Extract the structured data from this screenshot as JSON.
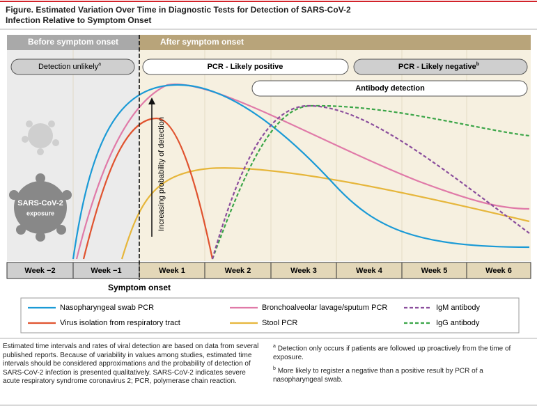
{
  "header": {
    "title": "Figure. Estimated Variation Over Time in Diagnostic Tests for Detection of SARS-CoV-2 Infection Relative to Symptom Onset"
  },
  "phases": {
    "before": "Before symptom onset",
    "after": "After symptom onset"
  },
  "bands": {
    "detection_unlikely": "Detection unlikely",
    "detection_unlikely_note": "a",
    "pcr_positive": "PCR - Likely positive",
    "pcr_negative": "PCR - Likely negative",
    "pcr_negative_note": "b",
    "antibody": "Antibody detection"
  },
  "exposure": {
    "name": "SARS-CoV-2",
    "label": "exposure"
  },
  "arrow_label": "Increasing probability of detection",
  "weeks": [
    "Week −2",
    "Week −1",
    "Week 1",
    "Week 2",
    "Week 3",
    "Week 4",
    "Week 5",
    "Week 6"
  ],
  "onset_label": "Symptom onset",
  "legend": [
    "Nasopharyngeal swab PCR",
    "Virus isolation from respiratory tract",
    "Bronchoalveolar lavage/sputum PCR",
    "Stool PCR",
    "IgM antibody",
    "IgG antibody"
  ],
  "notes": {
    "main": "Estimated time intervals and rates of viral detection are based on data from several published reports. Because of variability in values among studies, estimated time intervals should be considered approximations and the probability of detection of SARS-CoV-2 infection is presented qualitatively. SARS-CoV-2 indicates severe acute respiratory syndrome coronavirus 2; PCR, polymerase chain reaction.",
    "a_mark": "a",
    "a": "Detection only occurs if patients are followed up proactively from the time of exposure.",
    "b_mark": "b",
    "b": "More likely to register a negative than a positive result by PCR of a nasopharyngeal swab."
  }
}
